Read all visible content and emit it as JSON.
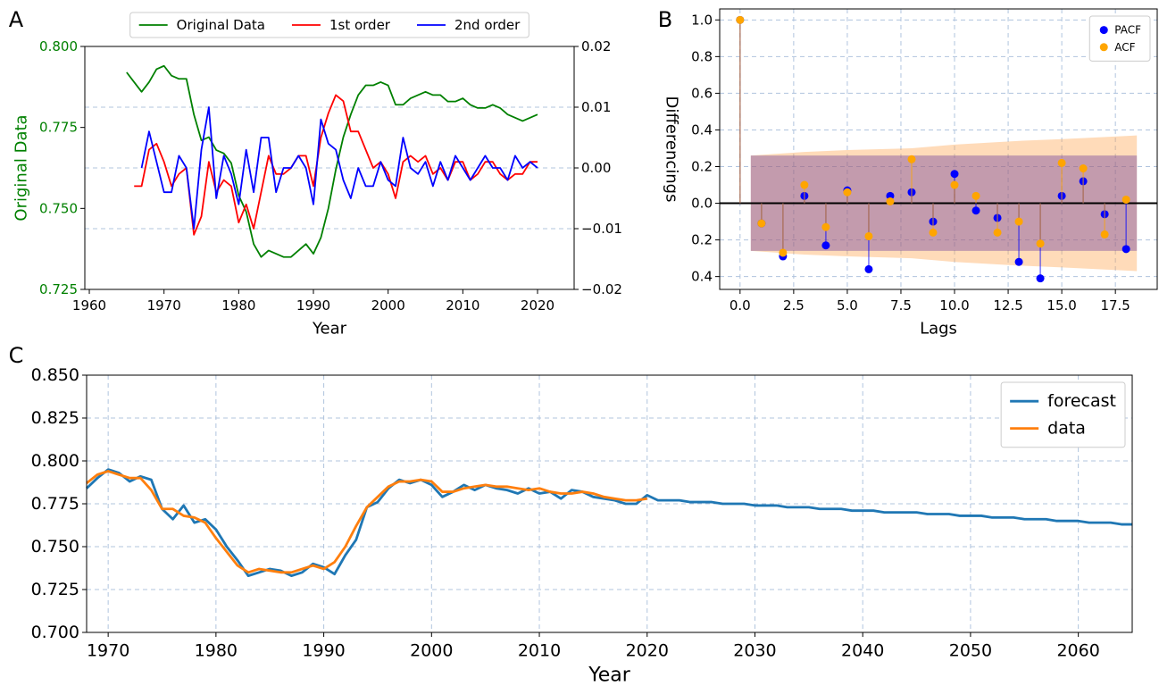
{
  "chart_data": [
    {
      "type": "line",
      "panel_label": "A",
      "xlabel": "Year",
      "ylabel": "Original Data",
      "y_color": "green",
      "x": [
        1965,
        1966,
        1967,
        1968,
        1969,
        1970,
        1971,
        1972,
        1973,
        1974,
        1975,
        1976,
        1977,
        1978,
        1979,
        1980,
        1981,
        1982,
        1983,
        1984,
        1985,
        1986,
        1987,
        1988,
        1989,
        1990,
        1991,
        1992,
        1993,
        1994,
        1995,
        1996,
        1997,
        1998,
        1999,
        2000,
        2001,
        2002,
        2003,
        2004,
        2005,
        2006,
        2007,
        2008,
        2009,
        2010,
        2011,
        2012,
        2013,
        2014,
        2015,
        2016,
        2017,
        2018,
        2019,
        2020
      ],
      "series": [
        {
          "name": "Original Data",
          "color": "green",
          "values": [
            0.792,
            0.789,
            0.786,
            0.789,
            0.793,
            0.794,
            0.791,
            0.79,
            0.79,
            0.779,
            0.771,
            0.772,
            0.768,
            0.767,
            0.764,
            0.754,
            0.749,
            0.739,
            0.735,
            0.737,
            0.736,
            0.735,
            0.735,
            0.737,
            0.739,
            0.736,
            0.741,
            0.75,
            0.762,
            0.772,
            0.779,
            0.785,
            0.788,
            0.788,
            0.789,
            0.788,
            0.782,
            0.782,
            0.784,
            0.785,
            0.786,
            0.785,
            0.785,
            0.783,
            0.783,
            0.784,
            0.782,
            0.781,
            0.781,
            0.782,
            0.781,
            0.779,
            0.778,
            0.777,
            0.778,
            0.779
          ]
        },
        {
          "name": "1st order",
          "color": "#ff0000",
          "axis": "y2",
          "values": [
            null,
            -0.003,
            -0.003,
            0.003,
            0.004,
            0.001,
            -0.003,
            -0.001,
            0.0,
            -0.011,
            -0.008,
            0.001,
            -0.004,
            -0.002,
            -0.003,
            -0.009,
            -0.006,
            -0.01,
            -0.004,
            0.002,
            -0.001,
            -0.001,
            0.0,
            0.002,
            0.002,
            -0.003,
            0.005,
            0.009,
            0.012,
            0.011,
            0.006,
            0.006,
            0.003,
            0.0,
            0.001,
            -0.001,
            -0.005,
            0.001,
            0.002,
            0.001,
            0.002,
            -0.001,
            0.0,
            -0.002,
            0.001,
            0.001,
            -0.002,
            -0.001,
            0.001,
            0.001,
            -0.001,
            -0.002,
            -0.001,
            -0.001,
            0.001,
            0.001
          ]
        },
        {
          "name": "2nd order",
          "color": "#0000ff",
          "axis": "y2",
          "values": [
            null,
            null,
            0.0,
            0.006,
            0.001,
            -0.004,
            -0.004,
            0.002,
            0.0,
            -0.01,
            0.003,
            0.01,
            -0.005,
            0.002,
            -0.001,
            -0.006,
            0.003,
            -0.004,
            0.005,
            0.005,
            -0.004,
            0.0,
            0.0,
            0.002,
            0.0,
            -0.006,
            0.008,
            0.004,
            0.003,
            -0.002,
            -0.005,
            0.0,
            -0.003,
            -0.003,
            0.001,
            -0.002,
            -0.003,
            0.005,
            0.0,
            -0.001,
            0.001,
            -0.003,
            0.001,
            -0.002,
            0.002,
            0.0,
            -0.002,
            0.0,
            0.002,
            0.0,
            0.0,
            -0.002,
            0.002,
            0.0,
            0.001,
            0.0
          ]
        }
      ],
      "xlim": [
        1959.4,
        2024.9
      ],
      "xticks": [
        1960,
        1970,
        1980,
        1990,
        2000,
        2010,
        2020
      ],
      "ylim": [
        0.725,
        0.8
      ],
      "yticks": [
        0.725,
        {
          "value": 0.75,
          "label": "0.750"
        },
        0.775,
        {
          "value": 0.8,
          "label": "0.800"
        }
      ],
      "y2lim": [
        -0.02,
        0.02
      ],
      "y2ticks": [
        {
          "value": -0.02,
          "label": "−0.02"
        },
        {
          "value": -0.01,
          "label": "−0.01"
        },
        {
          "value": 0,
          "label": "0.00"
        },
        0.01,
        0.02
      ],
      "grid": "y2",
      "legend": "upper center outside"
    },
    {
      "type": "stem",
      "panel_label": "B",
      "xlabel": "Lags",
      "ylabel": "Differencings",
      "x": [
        0,
        1,
        2,
        3,
        4,
        5,
        6,
        7,
        8,
        9,
        10,
        11,
        12,
        13,
        14,
        15,
        16,
        17,
        18
      ],
      "series": [
        {
          "name": "PACF",
          "color": "#0000ff",
          "values": [
            1.0,
            -0.11,
            -0.29,
            0.04,
            -0.23,
            0.07,
            -0.36,
            0.04,
            0.06,
            -0.1,
            0.16,
            -0.04,
            -0.08,
            -0.32,
            -0.41,
            0.04,
            0.12,
            -0.06,
            -0.25
          ]
        },
        {
          "name": "ACF",
          "color": "#ffa500",
          "values": [
            1.0,
            -0.11,
            -0.27,
            0.1,
            -0.13,
            0.06,
            -0.18,
            0.01,
            0.24,
            -0.16,
            0.1,
            0.04,
            -0.16,
            -0.1,
            -0.22,
            0.22,
            0.19,
            -0.17,
            0.02
          ]
        }
      ],
      "bands": [
        {
          "color": "#ffa54f",
          "x": [
            0.5,
            3,
            5,
            8,
            10,
            13,
            15,
            18.5
          ],
          "values": [
            0.26,
            0.28,
            0.29,
            0.3,
            0.32,
            0.34,
            0.35,
            0.37
          ]
        },
        {
          "color": "#6a3d9a",
          "x": [
            0.5,
            18.5
          ],
          "values": [
            0.26,
            0.26
          ]
        }
      ],
      "xlim": [
        -0.95,
        19.45
      ],
      "xticks": [
        {
          "value": 0,
          "label": "0.0"
        },
        2.5,
        {
          "value": 5,
          "label": "5.0"
        },
        7.5,
        {
          "value": 10,
          "label": "10.0"
        },
        12.5,
        {
          "value": 15,
          "label": "15.0"
        },
        17.5
      ],
      "ylim": [
        -0.47,
        1.06
      ],
      "yticks": [
        {
          "value": -0.4,
          "label": "0.4"
        },
        {
          "value": -0.2,
          "label": "0.2"
        },
        {
          "value": 0,
          "label": "0.0"
        },
        0.2,
        0.4,
        0.6,
        0.8,
        {
          "value": 1,
          "label": "1.0"
        }
      ],
      "grid": true,
      "zero_line": true,
      "legend": "upper right"
    },
    {
      "type": "line",
      "panel_label": "C",
      "xlabel": "Year",
      "x": [
        1968,
        1969,
        1970,
        1971,
        1972,
        1973,
        1974,
        1975,
        1976,
        1977,
        1978,
        1979,
        1980,
        1981,
        1982,
        1983,
        1984,
        1985,
        1986,
        1987,
        1988,
        1989,
        1990,
        1991,
        1992,
        1993,
        1994,
        1995,
        1996,
        1997,
        1998,
        1999,
        2000,
        2001,
        2002,
        2003,
        2004,
        2005,
        2006,
        2007,
        2008,
        2009,
        2010,
        2011,
        2012,
        2013,
        2014,
        2015,
        2016,
        2017,
        2018,
        2019,
        2020,
        2021,
        2022,
        2023,
        2024,
        2025,
        2026,
        2027,
        2028,
        2029,
        2030,
        2031,
        2032,
        2033,
        2034,
        2035,
        2036,
        2037,
        2038,
        2039,
        2040,
        2041,
        2042,
        2043,
        2044,
        2045,
        2046,
        2047,
        2048,
        2049,
        2050,
        2051,
        2052,
        2053,
        2054,
        2055,
        2056,
        2057,
        2058,
        2059,
        2060,
        2061,
        2062,
        2063,
        2064,
        2065
      ],
      "series": [
        {
          "name": "forecast",
          "color": "#1f77b4",
          "values": [
            0.784,
            0.79,
            0.795,
            0.793,
            0.788,
            0.791,
            0.789,
            0.772,
            0.766,
            0.774,
            0.764,
            0.766,
            0.76,
            0.75,
            0.742,
            0.733,
            0.735,
            0.737,
            0.736,
            0.733,
            0.735,
            0.74,
            0.738,
            0.734,
            0.745,
            0.754,
            0.773,
            0.776,
            0.784,
            0.789,
            0.787,
            0.789,
            0.786,
            0.779,
            0.782,
            0.786,
            0.783,
            0.786,
            0.784,
            0.783,
            0.781,
            0.784,
            0.781,
            0.782,
            0.778,
            0.783,
            0.782,
            0.779,
            0.778,
            0.777,
            0.775,
            0.775,
            0.78,
            0.777,
            0.777,
            0.777,
            0.776,
            0.776,
            0.776,
            0.775,
            0.775,
            0.775,
            0.774,
            0.774,
            0.774,
            0.773,
            0.773,
            0.773,
            0.772,
            0.772,
            0.772,
            0.771,
            0.771,
            0.771,
            0.77,
            0.77,
            0.77,
            0.77,
            0.769,
            0.769,
            0.769,
            0.768,
            0.768,
            0.768,
            0.767,
            0.767,
            0.767,
            0.766,
            0.766,
            0.766,
            0.765,
            0.765,
            0.765,
            0.764,
            0.764,
            0.764,
            0.763,
            0.763
          ]
        },
        {
          "name": "data",
          "color": "#ff7f0e",
          "values": [
            0.787,
            0.792,
            0.794,
            0.792,
            0.79,
            0.79,
            0.783,
            0.772,
            0.772,
            0.768,
            0.767,
            0.764,
            0.755,
            0.747,
            0.739,
            0.735,
            0.737,
            0.736,
            0.735,
            0.735,
            0.737,
            0.739,
            0.737,
            0.741,
            0.75,
            0.762,
            0.773,
            0.779,
            0.785,
            0.788,
            0.788,
            0.789,
            0.788,
            0.782,
            0.782,
            0.784,
            0.785,
            0.786,
            0.785,
            0.785,
            0.784,
            0.783,
            0.784,
            0.782,
            0.781,
            0.781,
            0.782,
            0.781,
            0.779,
            0.778,
            0.777,
            0.777,
            0.778,
            null,
            null,
            null,
            null,
            null,
            null,
            null,
            null,
            null,
            null,
            null,
            null,
            null,
            null,
            null,
            null,
            null,
            null,
            null,
            null,
            null,
            null,
            null,
            null,
            null,
            null,
            null,
            null,
            null,
            null,
            null,
            null,
            null,
            null,
            null,
            null,
            null,
            null,
            null,
            null,
            null,
            null,
            null,
            null,
            null
          ]
        }
      ],
      "xlim": [
        1968,
        2065
      ],
      "xticks": [
        1970,
        1980,
        1990,
        2000,
        2010,
        2020,
        2030,
        2040,
        2050,
        2060
      ],
      "ylim": [
        0.7,
        0.85
      ],
      "yticks": [
        {
          "value": 0.7,
          "label": "0.700"
        },
        0.725,
        {
          "value": 0.75,
          "label": "0.750"
        },
        0.775,
        {
          "value": 0.8,
          "label": "0.800"
        },
        0.825,
        {
          "value": 0.85,
          "label": "0.850"
        }
      ],
      "grid": true,
      "legend": "upper right"
    }
  ]
}
